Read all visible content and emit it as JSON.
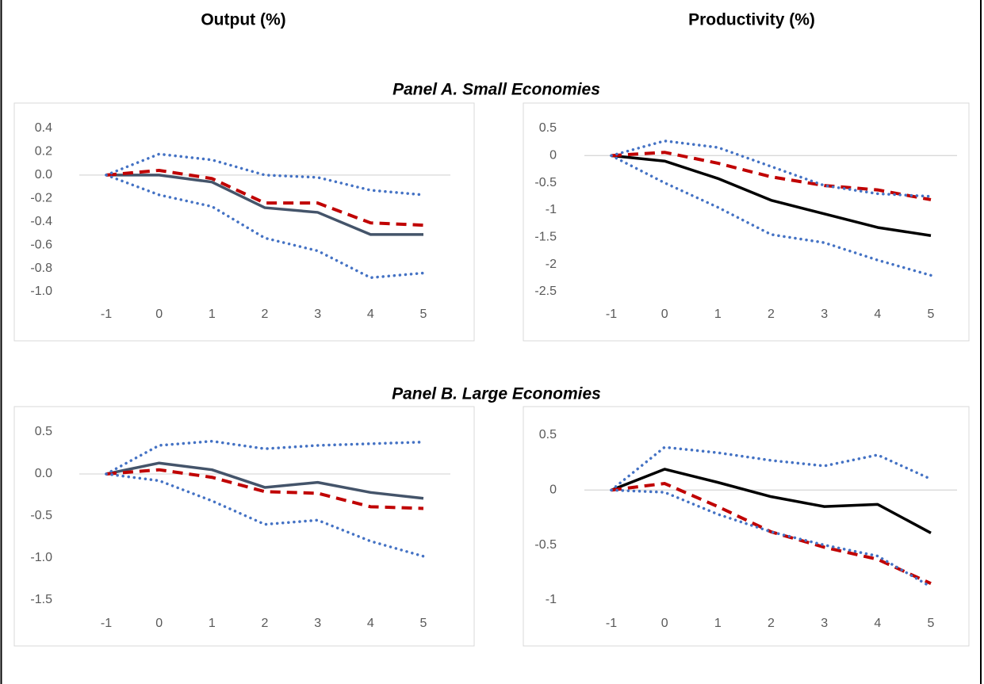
{
  "column_titles": [
    "Output (%)",
    "Productivity (%)"
  ],
  "panel_titles": [
    "Panel A. Small Economies",
    "Panel B. Large Economies"
  ],
  "chart_data": [
    {
      "type": "line",
      "categories": [
        "-1",
        "0",
        "1",
        "2",
        "3",
        "4",
        "5"
      ],
      "ylim": [
        -1,
        0.4
      ],
      "yticks": [
        0.4,
        0.2,
        {
          "value": 0,
          "label": "0.0"
        },
        -0.2,
        -0.4,
        -0.6,
        -0.8,
        {
          "value": -1,
          "label": "-1.0"
        }
      ],
      "series": [
        {
          "color": "#44546a",
          "style": "solid",
          "values": [
            0,
            0,
            -0.06,
            -0.28,
            -0.32,
            -0.51,
            -0.51
          ]
        },
        {
          "color": "#c00000",
          "style": "dashed",
          "values": [
            0,
            0.04,
            -0.03,
            -0.24,
            -0.24,
            -0.41,
            -0.43
          ]
        },
        {
          "color": "#4472c4",
          "style": "dotted",
          "values": [
            0,
            0.18,
            0.13,
            0,
            -0.02,
            -0.13,
            -0.17
          ]
        },
        {
          "color": "#4472c4",
          "style": "dotted",
          "values": [
            0,
            -0.17,
            -0.27,
            -0.54,
            -0.65,
            -0.88,
            -0.84
          ]
        }
      ]
    },
    {
      "type": "line",
      "categories": [
        "-1",
        "0",
        "1",
        "2",
        "3",
        "4",
        "5"
      ],
      "ylim": [
        -2.5,
        0.5
      ],
      "yticks": [
        0.5,
        0,
        -0.5,
        -1,
        -1.5,
        -2,
        -2.5
      ],
      "series": [
        {
          "color": "#000000",
          "style": "solid",
          "values": [
            0,
            -0.1,
            -0.42,
            -0.82,
            -1.07,
            -1.32,
            -1.47
          ]
        },
        {
          "color": "#c00000",
          "style": "dashed",
          "values": [
            0,
            0.06,
            -0.14,
            -0.39,
            -0.55,
            -0.63,
            -0.81
          ]
        },
        {
          "color": "#4472c4",
          "style": "dotted",
          "values": [
            0,
            0.27,
            0.15,
            -0.2,
            -0.55,
            -0.7,
            -0.75
          ]
        },
        {
          "color": "#4472c4",
          "style": "dotted",
          "values": [
            0,
            -0.5,
            -0.95,
            -1.45,
            -1.6,
            -1.92,
            -2.2
          ]
        }
      ]
    },
    {
      "type": "line",
      "categories": [
        "-1",
        "0",
        "1",
        "2",
        "3",
        "4",
        "5"
      ],
      "ylim": [
        -1.5,
        0.5
      ],
      "yticks": [
        0.5,
        {
          "value": 0,
          "label": "0.0"
        },
        -0.5,
        {
          "value": -1,
          "label": "-1.0"
        },
        -1.5
      ],
      "series": [
        {
          "color": "#44546a",
          "style": "solid",
          "values": [
            0,
            0.13,
            0.05,
            -0.16,
            -0.1,
            -0.22,
            -0.29
          ]
        },
        {
          "color": "#c00000",
          "style": "dashed",
          "values": [
            0,
            0.05,
            -0.04,
            -0.21,
            -0.23,
            -0.39,
            -0.41
          ]
        },
        {
          "color": "#4472c4",
          "style": "dotted",
          "values": [
            0,
            0.34,
            0.39,
            0.3,
            0.34,
            0.36,
            0.38
          ]
        },
        {
          "color": "#4472c4",
          "style": "dotted",
          "values": [
            0,
            -0.08,
            -0.32,
            -0.6,
            -0.55,
            -0.8,
            -0.98
          ]
        }
      ]
    },
    {
      "type": "line",
      "categories": [
        "-1",
        "0",
        "1",
        "2",
        "3",
        "4",
        "5"
      ],
      "ylim": [
        -1,
        0.5
      ],
      "yticks": [
        0.5,
        0,
        -0.5,
        -1
      ],
      "series": [
        {
          "color": "#000000",
          "style": "solid",
          "values": [
            0,
            0.19,
            0.07,
            -0.06,
            -0.15,
            -0.13,
            -0.39
          ]
        },
        {
          "color": "#c00000",
          "style": "dashed",
          "values": [
            0,
            0.06,
            -0.15,
            -0.38,
            -0.52,
            -0.63,
            -0.85
          ]
        },
        {
          "color": "#4472c4",
          "style": "dotted",
          "values": [
            0,
            0.39,
            0.34,
            0.27,
            0.22,
            0.32,
            0.1
          ]
        },
        {
          "color": "#4472c4",
          "style": "dotted",
          "values": [
            0,
            -0.02,
            -0.22,
            -0.38,
            -0.5,
            -0.6,
            -0.88
          ]
        }
      ]
    }
  ]
}
